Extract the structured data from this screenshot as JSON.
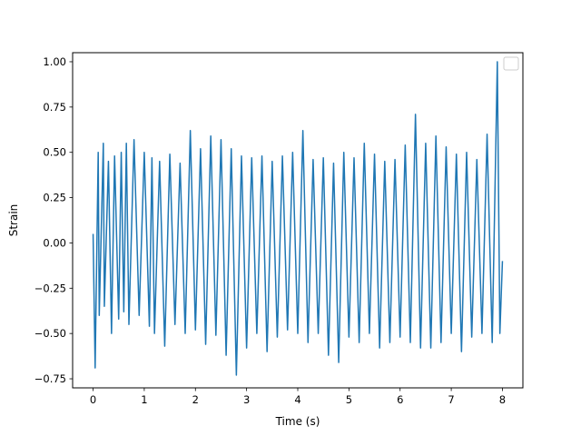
{
  "chart_data": {
    "type": "line",
    "title": "",
    "xlabel": "Time (s)",
    "ylabel": "Strain",
    "xlim": [
      -0.4,
      8.4
    ],
    "ylim": [
      -0.8,
      1.05
    ],
    "xticks": [
      0,
      1,
      2,
      3,
      4,
      5,
      6,
      7,
      8
    ],
    "xtick_labels": [
      "0",
      "1",
      "2",
      "3",
      "4",
      "5",
      "6",
      "7",
      "8"
    ],
    "yticks": [
      -0.75,
      -0.5,
      -0.25,
      0.0,
      0.25,
      0.5,
      0.75,
      1.0
    ],
    "ytick_labels": [
      "−0.75",
      "−0.50",
      "−0.25",
      "0.00",
      "0.25",
      "0.50",
      "0.75",
      "1.00"
    ],
    "grid": false,
    "legend": {
      "placement": "top-right",
      "entries": []
    },
    "colors": {
      "series": "#1f77b4",
      "axes": "#000000",
      "background": "#ffffff",
      "legend_border": "#cccccc"
    },
    "series": [
      {
        "x": [
          0.0,
          0.04,
          0.1,
          0.12,
          0.2,
          0.22,
          0.3,
          0.36,
          0.42,
          0.5,
          0.55,
          0.6,
          0.65,
          0.7,
          0.8,
          0.9,
          1.0,
          1.1,
          1.15,
          1.2,
          1.3,
          1.4,
          1.5,
          1.6,
          1.7,
          1.8,
          1.9,
          2.0,
          2.1,
          2.2,
          2.3,
          2.4,
          2.5,
          2.6,
          2.7,
          2.8,
          2.9,
          3.0,
          3.1,
          3.2,
          3.3,
          3.4,
          3.5,
          3.6,
          3.7,
          3.8,
          3.9,
          4.0,
          4.1,
          4.2,
          4.3,
          4.4,
          4.5,
          4.6,
          4.7,
          4.8,
          4.9,
          5.0,
          5.1,
          5.2,
          5.3,
          5.4,
          5.5,
          5.6,
          5.7,
          5.8,
          5.9,
          6.0,
          6.1,
          6.2,
          6.3,
          6.4,
          6.5,
          6.6,
          6.7,
          6.8,
          6.9,
          7.0,
          7.1,
          7.2,
          7.3,
          7.4,
          7.5,
          7.6,
          7.7,
          7.8,
          7.9,
          7.95,
          8.0
        ],
        "y": [
          0.05,
          -0.69,
          0.5,
          -0.4,
          0.55,
          -0.35,
          0.45,
          -0.5,
          0.48,
          -0.42,
          0.5,
          -0.38,
          0.55,
          -0.45,
          0.57,
          -0.4,
          0.5,
          -0.46,
          0.47,
          -0.5,
          0.45,
          -0.57,
          0.49,
          -0.45,
          0.44,
          -0.5,
          0.62,
          -0.48,
          0.52,
          -0.56,
          0.59,
          -0.51,
          0.57,
          -0.62,
          0.52,
          -0.73,
          0.48,
          -0.58,
          0.47,
          -0.5,
          0.48,
          -0.6,
          0.45,
          -0.52,
          0.48,
          -0.48,
          0.5,
          -0.5,
          0.62,
          -0.55,
          0.46,
          -0.5,
          0.47,
          -0.62,
          0.44,
          -0.66,
          0.5,
          -0.52,
          0.47,
          -0.55,
          0.55,
          -0.5,
          0.49,
          -0.58,
          0.45,
          -0.55,
          0.46,
          -0.52,
          0.54,
          -0.55,
          0.71,
          -0.58,
          0.55,
          -0.58,
          0.59,
          -0.55,
          0.53,
          -0.5,
          0.49,
          -0.6,
          0.5,
          -0.52,
          0.46,
          -0.5,
          0.6,
          -0.55,
          1.0,
          -0.5,
          -0.1
        ]
      }
    ]
  }
}
